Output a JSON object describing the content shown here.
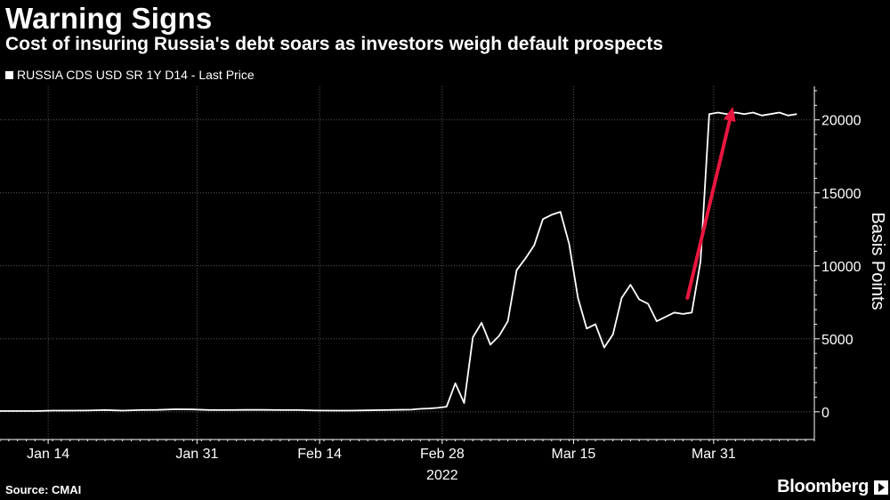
{
  "header": {
    "title": "Warning Signs",
    "subtitle": "Cost of insuring Russia's debt soars as investors weigh default prospects"
  },
  "footer": {
    "source": "Source: CMAI",
    "brand": "Bloomberg"
  },
  "colors": {
    "background": "#000000",
    "line": "#ffffff",
    "grid": "#5a5a5a",
    "arrow": "#e8173f"
  },
  "chart_data": {
    "type": "line",
    "title": "Warning Signs",
    "subtitle": "Cost of insuring Russia's debt soars as investors weigh default prospects",
    "ylabel": "Basis Points",
    "xlabel": "2022",
    "ylim": [
      -1900,
      22300
    ],
    "xlim": [
      0,
      93
    ],
    "yticks": [
      0,
      5000,
      10000,
      15000,
      20000
    ],
    "ytick_labels": [
      "0",
      "5000",
      "10000",
      "15000",
      "20000"
    ],
    "xticks": [
      {
        "x": 5.5,
        "label": "Jan 14"
      },
      {
        "x": 22.5,
        "label": "Jan 31"
      },
      {
        "x": 36.5,
        "label": "Feb 14"
      },
      {
        "x": 50.5,
        "label": "Feb 28"
      },
      {
        "x": 65.5,
        "label": "Mar 15"
      },
      {
        "x": 81.5,
        "label": "Mar 31"
      }
    ],
    "x_year_label": {
      "x": 50.5,
      "label": "2022"
    },
    "grid": true,
    "legend": "top-left",
    "series": [
      {
        "name": "RUSSIA CDS USD SR 1Y D14 - Last Price",
        "x": [
          0,
          2,
          4,
          6,
          8,
          10,
          12,
          14,
          16,
          18,
          20,
          22,
          24,
          26,
          28,
          30,
          32,
          34,
          36,
          38,
          40,
          42,
          44,
          45,
          47,
          48,
          49,
          50,
          51,
          52,
          53,
          54,
          55,
          56,
          57,
          58,
          59,
          60,
          61,
          62,
          63,
          64,
          65,
          66,
          67,
          68,
          69,
          70,
          71,
          72,
          73,
          74,
          75,
          76,
          77,
          78,
          79,
          80,
          81,
          82,
          83,
          84,
          85,
          86,
          87,
          88,
          89,
          90,
          91
        ],
        "values": [
          50,
          50,
          50,
          80,
          80,
          90,
          120,
          80,
          120,
          130,
          170,
          160,
          120,
          120,
          130,
          130,
          120,
          120,
          90,
          80,
          80,
          100,
          120,
          130,
          150,
          200,
          230,
          270,
          350,
          1950,
          600,
          5100,
          6100,
          4600,
          5200,
          6200,
          9700,
          10500,
          11400,
          13200,
          13500,
          13700,
          11500,
          7800,
          5700,
          6000,
          4400,
          5300,
          7800,
          8700,
          7700,
          7400,
          6200,
          6500,
          6800,
          6700,
          6800,
          10300,
          20400,
          20500,
          20400,
          20500,
          20400,
          20500,
          20300,
          20400,
          20500,
          20300,
          20400
        ]
      }
    ],
    "annotations": [
      {
        "type": "arrow",
        "from": {
          "x": 78.5,
          "y": 7800
        },
        "to": {
          "x": 83.7,
          "y": 20900
        }
      }
    ]
  }
}
